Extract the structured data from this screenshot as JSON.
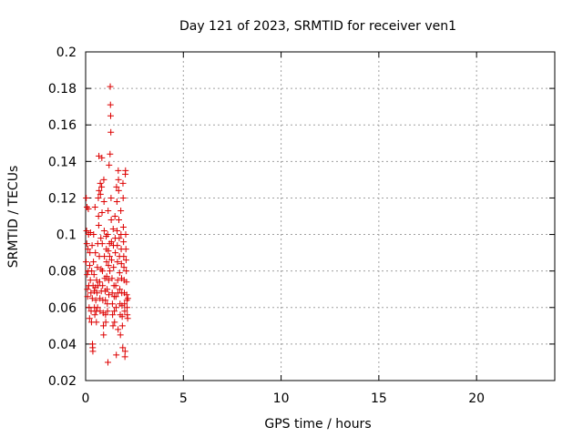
{
  "chart_data": {
    "type": "scatter",
    "title": "Day 121 of 2023, SRMTID for receiver ven1",
    "xlabel": "GPS time / hours",
    "ylabel": "SRMTID / TECUs",
    "xlim": [
      0,
      24
    ],
    "ylim": [
      0.02,
      0.2
    ],
    "xticks": [
      0,
      5,
      10,
      15,
      20
    ],
    "xtick_labels": [
      "0",
      "5",
      "10",
      "15",
      "20"
    ],
    "yticks": [
      0.02,
      0.04,
      0.06,
      0.08,
      0.1,
      0.12,
      0.14,
      0.16,
      0.18,
      0.2
    ],
    "ytick_labels": [
      "0.02",
      "0.04",
      "0.06",
      "0.08",
      "0.1",
      "0.12",
      "0.14",
      "0.16",
      "0.18",
      "0.2"
    ],
    "grid": true,
    "marker": "+",
    "color": "#dd0000",
    "series": [
      {
        "name": "SRMTID",
        "points": [
          [
            0.02,
            0.085
          ],
          [
            0.03,
            0.12
          ],
          [
            0.05,
            0.102
          ],
          [
            0.06,
            0.095
          ],
          [
            0.07,
            0.115
          ],
          [
            0.08,
            0.078
          ],
          [
            0.09,
            0.07
          ],
          [
            0.1,
            0.066
          ],
          [
            0.12,
            0.092
          ],
          [
            0.13,
            0.08
          ],
          [
            0.14,
            0.114
          ],
          [
            0.15,
            0.1
          ],
          [
            0.16,
            0.072
          ],
          [
            0.18,
            0.06
          ],
          [
            0.2,
            0.054
          ],
          [
            0.21,
            0.083
          ],
          [
            0.22,
            0.09
          ],
          [
            0.24,
            0.075
          ],
          [
            0.25,
            0.101
          ],
          [
            0.27,
            0.068
          ],
          [
            0.28,
            0.058
          ],
          [
            0.3,
            0.052
          ],
          [
            0.31,
            0.08
          ],
          [
            0.33,
            0.094
          ],
          [
            0.34,
            0.065
          ],
          [
            0.35,
            0.04
          ],
          [
            0.36,
            0.038
          ],
          [
            0.37,
            0.036
          ],
          [
            0.38,
            0.072
          ],
          [
            0.4,
            0.085
          ],
          [
            0.41,
            0.1
          ],
          [
            0.43,
            0.078
          ],
          [
            0.44,
            0.069
          ],
          [
            0.45,
            0.06
          ],
          [
            0.47,
            0.056
          ],
          [
            0.48,
            0.115
          ],
          [
            0.5,
            0.09
          ],
          [
            0.51,
            0.071
          ],
          [
            0.52,
            0.064
          ],
          [
            0.54,
            0.058
          ],
          [
            0.55,
            0.052
          ],
          [
            0.56,
            0.075
          ],
          [
            0.58,
            0.068
          ],
          [
            0.6,
            0.082
          ],
          [
            0.61,
            0.06
          ],
          [
            0.62,
            0.095
          ],
          [
            0.63,
            0.072
          ],
          [
            0.65,
            0.12
          ],
          [
            0.66,
            0.11
          ],
          [
            0.67,
            0.105
          ],
          [
            0.68,
            0.143
          ],
          [
            0.69,
            0.124
          ],
          [
            0.7,
            0.088
          ],
          [
            0.72,
            0.074
          ],
          [
            0.73,
            0.065
          ],
          [
            0.74,
            0.058
          ],
          [
            0.75,
            0.128
          ],
          [
            0.76,
            0.122
          ],
          [
            0.78,
            0.098
          ],
          [
            0.79,
            0.081
          ],
          [
            0.8,
            0.069
          ],
          [
            0.82,
            0.126
          ],
          [
            0.83,
            0.142
          ],
          [
            0.84,
            0.112
          ],
          [
            0.85,
            0.095
          ],
          [
            0.86,
            0.08
          ],
          [
            0.87,
            0.072
          ],
          [
            0.88,
            0.064
          ],
          [
            0.9,
            0.057
          ],
          [
            0.91,
            0.05
          ],
          [
            0.92,
            0.045
          ],
          [
            0.93,
            0.13
          ],
          [
            0.94,
            0.118
          ],
          [
            0.95,
            0.102
          ],
          [
            0.96,
            0.088
          ],
          [
            0.98,
            0.076
          ],
          [
            1.0,
            0.069
          ],
          [
            1.01,
            0.064
          ],
          [
            1.02,
            0.056
          ],
          [
            1.03,
            0.052
          ],
          [
            1.05,
            0.099
          ],
          [
            1.06,
            0.092
          ],
          [
            1.07,
            0.085
          ],
          [
            1.08,
            0.077
          ],
          [
            1.1,
            0.07
          ],
          [
            1.11,
            0.062
          ],
          [
            1.12,
            0.058
          ],
          [
            1.13,
            0.1
          ],
          [
            1.14,
            0.03
          ],
          [
            1.15,
            0.113
          ],
          [
            1.16,
            0.091
          ],
          [
            1.17,
            0.083
          ],
          [
            1.18,
            0.075
          ],
          [
            1.19,
            0.067
          ],
          [
            1.2,
            0.138
          ],
          [
            1.22,
            0.095
          ],
          [
            1.23,
            0.088
          ],
          [
            1.24,
            0.08
          ],
          [
            1.25,
            0.144
          ],
          [
            1.26,
            0.181
          ],
          [
            1.27,
            0.171
          ],
          [
            1.28,
            0.165
          ],
          [
            1.29,
            0.156
          ],
          [
            1.3,
            0.12
          ],
          [
            1.31,
            0.108
          ],
          [
            1.32,
            0.096
          ],
          [
            1.33,
            0.086
          ],
          [
            1.35,
            0.076
          ],
          [
            1.36,
            0.068
          ],
          [
            1.37,
            0.062
          ],
          [
            1.38,
            0.056
          ],
          [
            1.4,
            0.05
          ],
          [
            1.41,
            0.103
          ],
          [
            1.42,
            0.094
          ],
          [
            1.43,
            0.082
          ],
          [
            1.45,
            0.072
          ],
          [
            1.46,
            0.066
          ],
          [
            1.47,
            0.058
          ],
          [
            1.48,
            0.052
          ],
          [
            1.5,
            0.11
          ],
          [
            1.51,
            0.098
          ],
          [
            1.52,
            0.09
          ],
          [
            1.54,
            0.072
          ],
          [
            1.55,
            0.066
          ],
          [
            1.56,
            0.06
          ],
          [
            1.57,
            0.034
          ],
          [
            1.58,
            0.126
          ],
          [
            1.6,
            0.118
          ],
          [
            1.61,
            0.102
          ],
          [
            1.62,
            0.094
          ],
          [
            1.63,
            0.085
          ],
          [
            1.64,
            0.075
          ],
          [
            1.65,
            0.068
          ],
          [
            1.66,
            0.048
          ],
          [
            1.67,
            0.135
          ],
          [
            1.68,
            0.13
          ],
          [
            1.69,
            0.124
          ],
          [
            1.7,
            0.108
          ],
          [
            1.72,
            0.098
          ],
          [
            1.73,
            0.088
          ],
          [
            1.74,
            0.079
          ],
          [
            1.75,
            0.07
          ],
          [
            1.76,
            0.062
          ],
          [
            1.77,
            0.056
          ],
          [
            1.78,
            0.045
          ],
          [
            1.8,
            0.113
          ],
          [
            1.81,
            0.1
          ],
          [
            1.82,
            0.092
          ],
          [
            1.83,
            0.084
          ],
          [
            1.84,
            0.076
          ],
          [
            1.85,
            0.068
          ],
          [
            1.86,
            0.061
          ],
          [
            1.87,
            0.055
          ],
          [
            1.88,
            0.05
          ],
          [
            1.9,
            0.038
          ],
          [
            1.91,
            0.128
          ],
          [
            1.92,
            0.12
          ],
          [
            1.93,
            0.104
          ],
          [
            1.94,
            0.096
          ],
          [
            1.95,
            0.088
          ],
          [
            1.96,
            0.082
          ],
          [
            1.97,
            0.075
          ],
          [
            1.98,
            0.068
          ],
          [
            1.99,
            0.062
          ],
          [
            2.0,
            0.058
          ],
          [
            2.01,
            0.033
          ],
          [
            2.02,
            0.036
          ],
          [
            2.03,
            0.133
          ],
          [
            2.04,
            0.135
          ],
          [
            2.05,
            0.1
          ],
          [
            2.06,
            0.092
          ],
          [
            2.07,
            0.086
          ],
          [
            2.08,
            0.08
          ],
          [
            2.09,
            0.074
          ],
          [
            2.1,
            0.067
          ],
          [
            2.11,
            0.064
          ],
          [
            2.12,
            0.06
          ],
          [
            2.13,
            0.056
          ],
          [
            2.15,
            0.054
          ],
          [
            2.16,
            0.065
          ]
        ]
      }
    ]
  }
}
